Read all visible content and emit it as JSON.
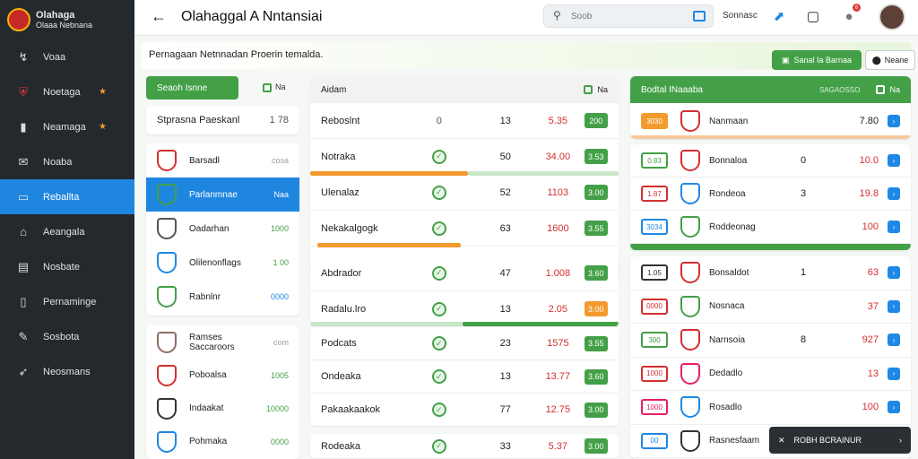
{
  "brand": {
    "line1": "Olahaga",
    "line2": "Olaaa Nebnana"
  },
  "nav": [
    {
      "label": "Voaa",
      "icon": "route-icon"
    },
    {
      "label": "Noetaga",
      "icon": "crest-icon",
      "star": "★"
    },
    {
      "label": "Neamaga",
      "icon": "book-icon",
      "star": "★"
    },
    {
      "label": "Noaba",
      "icon": "mail-icon"
    },
    {
      "label": "Reballta",
      "icon": "monitor-icon"
    },
    {
      "label": "Aeangala",
      "icon": "home-icon"
    },
    {
      "label": "Nosbate",
      "icon": "bookmark-icon"
    },
    {
      "label": "Pernaminge",
      "icon": "file-icon"
    },
    {
      "label": "Sosbota",
      "icon": "tool-icon"
    },
    {
      "label": "Neosmans",
      "icon": "pin-icon"
    }
  ],
  "topbar": {
    "title": "Olahaggal A  Nntansiai",
    "search_placeholder": "Soob",
    "label": "Sonnasc"
  },
  "banner": {
    "text": "Pernagaan Netnnadan Proerin temalda.",
    "primary": "Sanal Ia Barnaa",
    "secondary": "Neane"
  },
  "left_header": {
    "tab": "Seaoh Isnne",
    "tab2": "Na"
  },
  "left_head_row": {
    "label": "Stprasna Paeskanl",
    "value": "1 78"
  },
  "left_teams": [
    {
      "name": "Barsadl",
      "val": "cosa",
      "color": "#9e9e9e"
    },
    {
      "name": "Parlanmnae",
      "val": "Naa",
      "color": "#ffffff"
    },
    {
      "name": "Oadarhan",
      "val": "1000",
      "color": "#43a047"
    },
    {
      "name": "Olilenonflags",
      "val": "1 00",
      "color": "#43a047"
    },
    {
      "name": "Rabnlnr",
      "val": "0000",
      "color": "#1e88e5"
    }
  ],
  "left_teams2": [
    {
      "name": "Ramses Saccaroors",
      "val": "com",
      "color": "#9e9e9e"
    },
    {
      "name": "Poboalsa",
      "val": "1005",
      "color": "#43a047"
    },
    {
      "name": "Indaakat",
      "val": "10000",
      "color": "#43a047"
    },
    {
      "name": "Pohmaka",
      "val": "0000",
      "color": "#43a047"
    }
  ],
  "mid_header": {
    "title": "Aidam",
    "right": "Na"
  },
  "mid_rows1": [
    {
      "name": "Reboslnt",
      "a": "0",
      "b": "13",
      "c": "5.35",
      "d": "200"
    },
    {
      "name": "Notraka",
      "a": "",
      "b": "50",
      "c": "34.00",
      "d": "3.53"
    },
    {
      "name": "Ulenalaz",
      "a": "",
      "b": "52",
      "c": "1103",
      "d": "3.00"
    },
    {
      "name": "Nekakalgogk",
      "a": "",
      "b": "63",
      "c": "1600",
      "d": "3.55"
    }
  ],
  "mid_rows2": [
    {
      "name": "Abdrador",
      "b": "47",
      "c": "1.008",
      "d": "3.60"
    },
    {
      "name": "Radalu.lro",
      "b": "13",
      "c": "2.05",
      "d": "3.00"
    }
  ],
  "mid_rows3": [
    {
      "name": "Podcats",
      "b": "23",
      "c": "1575",
      "d": "3.55"
    },
    {
      "name": "Ondeaka",
      "b": "13",
      "c": "13.77",
      "d": "3.60"
    },
    {
      "name": "Pakaakaakok",
      "b": "77",
      "c": "12.75",
      "d": "3.00"
    }
  ],
  "mid_rows4": [
    {
      "name": "Rodeaka",
      "b": "33",
      "c": "5.37",
      "d": "3.00"
    }
  ],
  "right_header": {
    "title": "Bodtal INaaaba",
    "mid": "SAGAOSSO",
    "right": "Na"
  },
  "right_row0": {
    "pill": "3030",
    "name": "Nanmaan",
    "val": "7.80"
  },
  "right_rows1": [
    {
      "pill": "0.83",
      "name": "Bonnaloa",
      "x": "0",
      "y": "10.0",
      "c": "#43a047"
    },
    {
      "pill": "1.87",
      "name": "Rondeoa",
      "x": "3",
      "y": "19.8",
      "c": "#d32f2f"
    },
    {
      "pill": "3034",
      "name": "Roddeonag",
      "x": "",
      "y": "100",
      "c": "#1e88e5"
    }
  ],
  "right_rows2": [
    {
      "pill": "1.05",
      "name": "Bonsaldot",
      "x": "1",
      "y": "63"
    },
    {
      "pill": "0000",
      "name": "Nosnaca",
      "x": "",
      "y": "37"
    },
    {
      "pill": "300",
      "name": "Narnsoia",
      "x": "8",
      "y": "927"
    },
    {
      "pill": "1000",
      "name": "Dedadlo",
      "x": "",
      "y": "13"
    },
    {
      "pill": "1000",
      "name": "Rosadlo",
      "x": "",
      "y": "100"
    },
    {
      "pill": "00",
      "name": "Rasnesfaam",
      "x": "",
      "y": ""
    }
  ],
  "toast": {
    "text": "ROBH BCRAINUR"
  }
}
